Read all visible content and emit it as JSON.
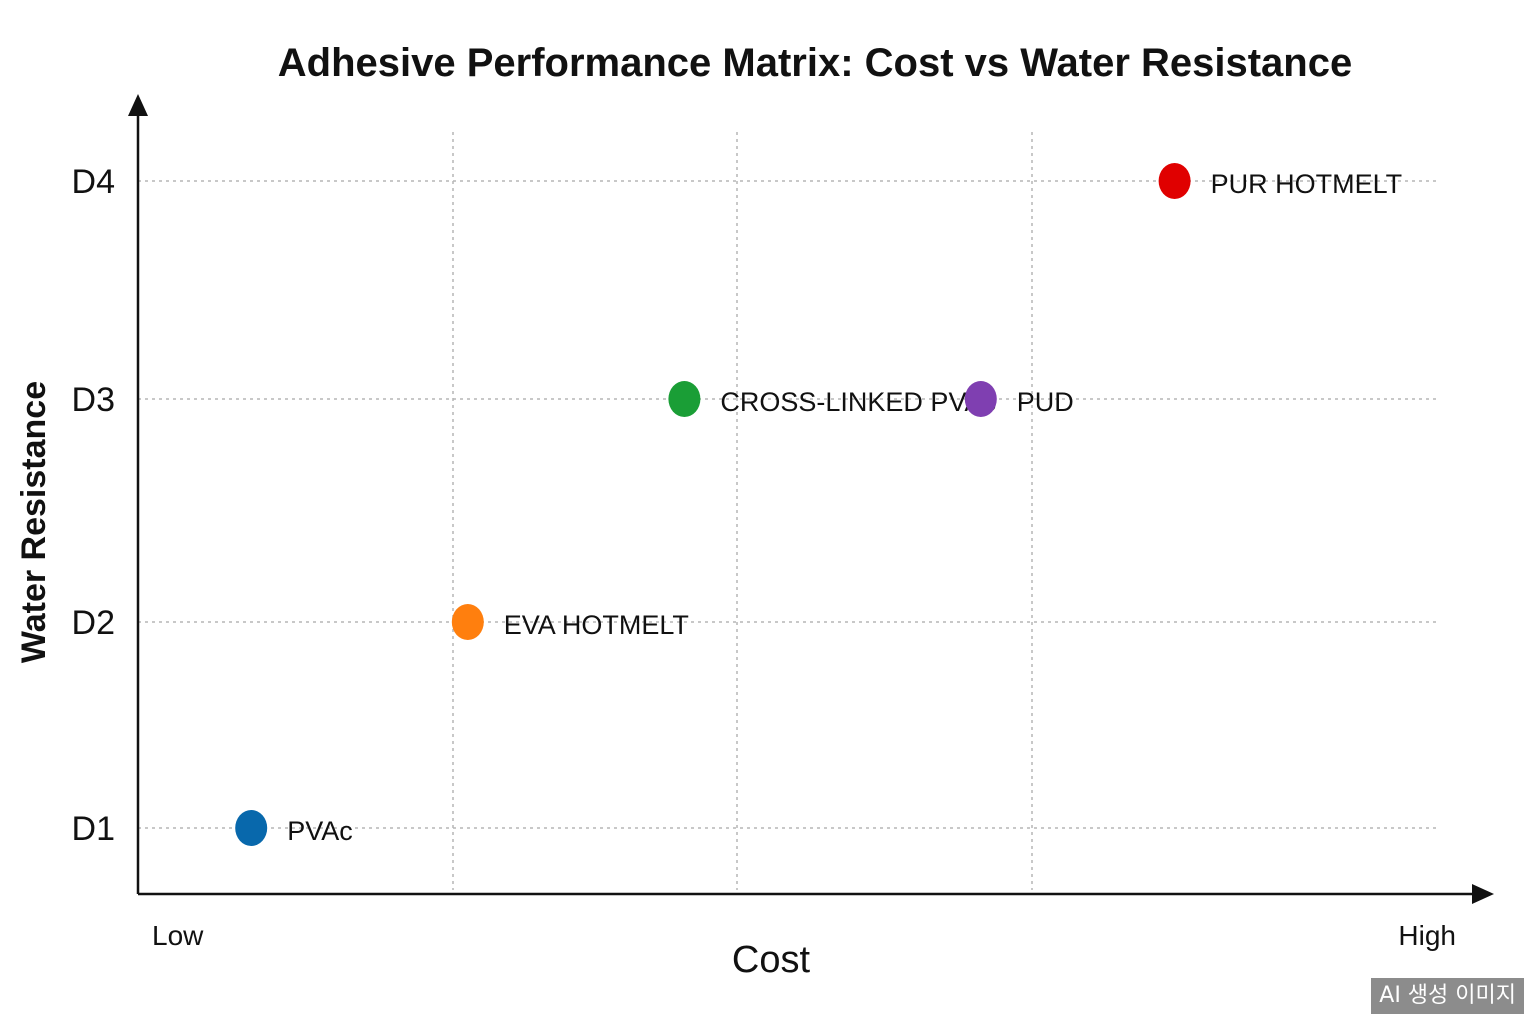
{
  "chart_data": {
    "type": "scatter",
    "title": "Adhesive Performance Matrix: Cost vs Water Resistance",
    "xlabel": "Cost",
    "ylabel": "Water Resistance",
    "x_scale_labels": {
      "low": "Low",
      "high": "High"
    },
    "xlim": [
      0,
      10
    ],
    "y_categories": [
      "D1",
      "D2",
      "D3",
      "D4"
    ],
    "grid": true,
    "points": [
      {
        "name": "PVAc",
        "x": 0.8,
        "y": "D1",
        "color": "#0868ac"
      },
      {
        "name": "EVA HOTMELT",
        "x": 2.7,
        "y": "D2",
        "color": "#ff7f0e"
      },
      {
        "name": "CROSS-LINKED PVAc",
        "x": 4.6,
        "y": "D3",
        "color": "#1a9e36"
      },
      {
        "name": "PUD",
        "x": 7.2,
        "y": "D3",
        "color": "#7f3fb1"
      },
      {
        "name": "PUR HOTMELT",
        "x": 8.9,
        "y": "D4",
        "color": "#e00000"
      }
    ]
  },
  "watermark": "AI 생성 이미지"
}
